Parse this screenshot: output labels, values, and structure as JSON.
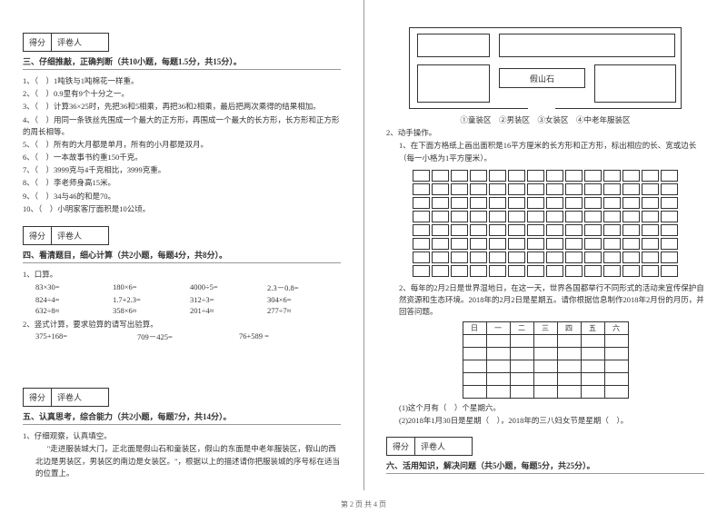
{
  "scorebox": {
    "left": "得分",
    "right": "评卷人"
  },
  "section3": {
    "title": "三、仔细推敲，正确判断（共10小题，每题1.5分，共15分）。",
    "items": [
      "1、（　）1吨铁与1吨棉花一样重。",
      "2、（　）0.9里有9个十分之一。",
      "3、（　）计算36×25时，先把36和5相乘，再把36和2相乘，最后把两次乘得的结果相加。",
      "4、（　）用同一条铁丝先围成一个最大的正方形，再围成一个最大的长方形，长方形和正方形的周长相等。",
      "5、（　）所有的大月都是单月，所有的小月都是双月。",
      "6、（　）一本故事书约重150千克。",
      "7、（　）3999克与4千克相比，3999克重。",
      "8、（　）李老师身高15米。",
      "9、（　）34与46的和是70。",
      "10、（　）小明家客厅面积是10公顷。"
    ]
  },
  "section4": {
    "title": "四、看清题目，细心计算（共2小题，每题4分，共8分）。",
    "q1": "1、口算。",
    "grid": [
      "83×30=",
      "180×6=",
      "4000÷5=",
      "2.3－0.8=",
      "824÷4=",
      "1.7+2.3=",
      "312÷3=",
      "304×6=",
      "632÷8≈",
      "358×6≈",
      "201÷4≈",
      "277÷7≈"
    ],
    "q2": "2、竖式计算，要求验算的请写出验算。",
    "grid2": [
      "375+168=",
      "709－425=",
      "76+589 ="
    ]
  },
  "section5": {
    "title": "五、认真思考，综合能力（共2小题，每题7分，共14分）。",
    "q1": "1、仔细观察，认真填空。",
    "para": "\"走进服装城大门，正北面是假山石和童装区，假山的东面是中老年服装区，假山的西北边是男装区，男装区的南边是女装区。\"，根据以上的描述请你把服装城的序号标在适当的位置上。"
  },
  "rockLabel": "假山石",
  "zones": "①童装区　②男装区　③女装区　④中老年服装区",
  "hands": {
    "h": "2、动手操作。",
    "q1": "1、在下面方格纸上画出面积是16平方厘米的长方形和正方形，标出相应的长、宽或边长（每一小格为1平方厘米）。",
    "q2p1": "2、每年的2月2日是世界湿地日，在这一天，世界各国都举行不同形式的活动来宣传保护自然资源和生态环境。2018年的2月2日是星期五。请你根据信息制作2018年2月份的月历，并回答问题。",
    "days": [
      "日",
      "一",
      "二",
      "三",
      "四",
      "五",
      "六"
    ],
    "sub1": "(1)这个月有（　）个星期六。",
    "sub2": "(2)2018年1月30日是星期（　），2018年的三八妇女节是星期（　）。"
  },
  "section6": {
    "title": "六、活用知识，解决问题（共5小题，每题5分，共25分）。"
  },
  "footer": "第 2 页 共 4 页",
  "gridStyle": {
    "gridCols": 14,
    "gridRows": 8,
    "calCols": 7,
    "calRows": 5,
    "border_color": "#333333",
    "text_color": "#333333",
    "background": "#ffffff"
  }
}
